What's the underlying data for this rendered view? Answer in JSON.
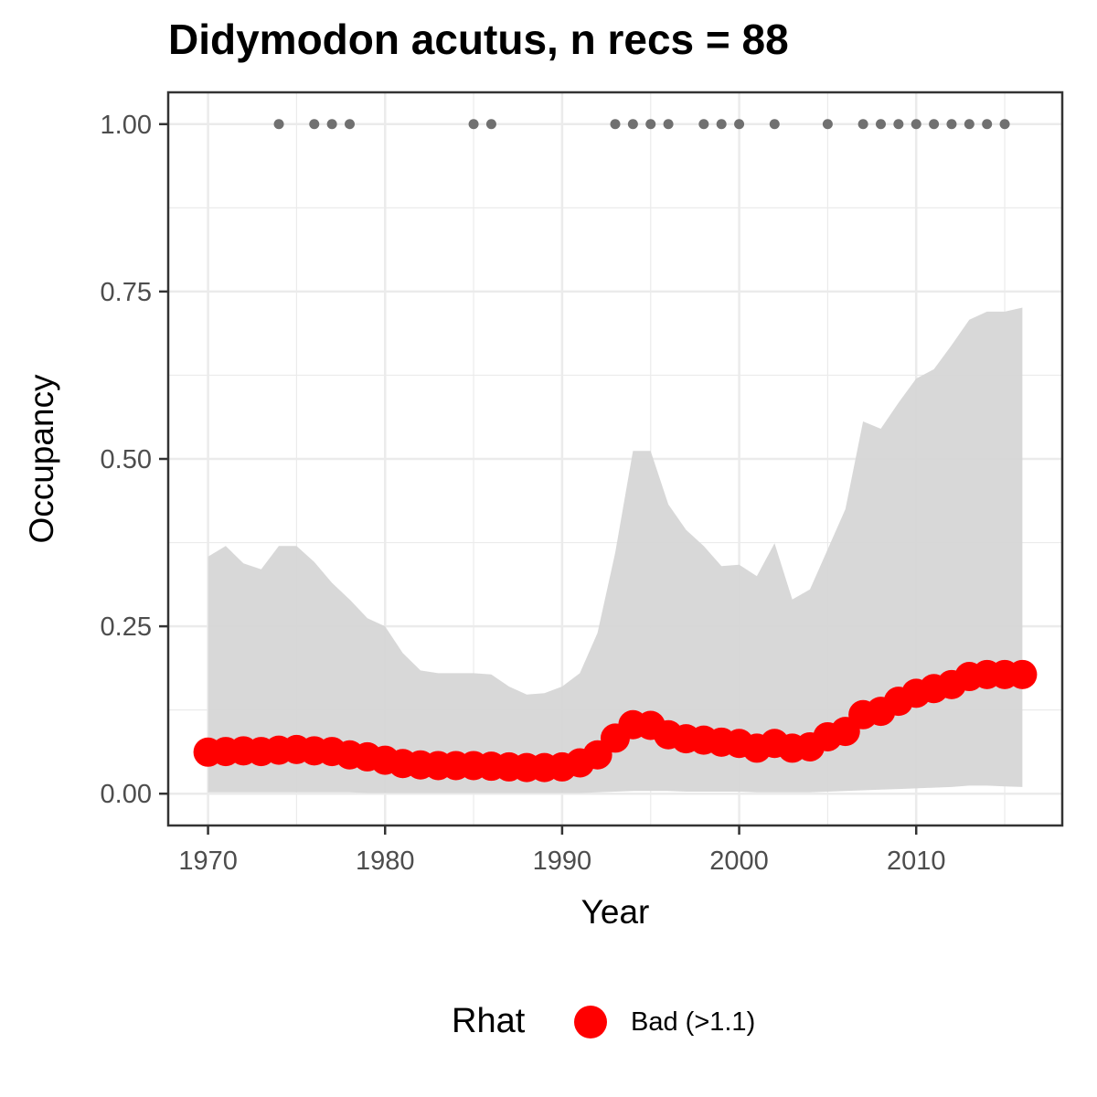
{
  "chart_data": {
    "type": "line",
    "title": "Didymodon acutus, n recs = 88",
    "xlabel": "Year",
    "ylabel": "Occupancy",
    "xlim": [
      1967.75,
      2018.25
    ],
    "ylim": [
      -0.0475,
      1.0475
    ],
    "x_ticks": [
      1970,
      1980,
      1990,
      2000,
      2010
    ],
    "x_tick_labels": [
      "1970",
      "1980",
      "1990",
      "2000",
      "2010"
    ],
    "y_ticks": [
      0.0,
      0.25,
      0.5,
      0.75,
      1.0
    ],
    "y_tick_labels": [
      "0.00",
      "0.25",
      "0.50",
      "0.75",
      "1.00"
    ],
    "grid": true,
    "legend_position": "bottom",
    "legend": {
      "title": "Rhat",
      "entries": [
        {
          "label": "Bad (>1.1)",
          "color": "#ff0000"
        }
      ]
    },
    "colors": {
      "line": "#ff0000",
      "ribbon": "#d6d6d6",
      "records": "#707070",
      "panel_border": "#333333",
      "grid": "#ebebeb"
    },
    "years": [
      1970,
      1971,
      1972,
      1973,
      1974,
      1975,
      1976,
      1977,
      1978,
      1979,
      1980,
      1981,
      1982,
      1983,
      1984,
      1985,
      1986,
      1987,
      1988,
      1989,
      1990,
      1991,
      1992,
      1993,
      1994,
      1995,
      1996,
      1997,
      1998,
      1999,
      2000,
      2001,
      2002,
      2003,
      2004,
      2005,
      2006,
      2007,
      2008,
      2009,
      2010,
      2011,
      2012,
      2013,
      2014,
      2015,
      2016
    ],
    "occupancy": [
      0.062,
      0.063,
      0.064,
      0.063,
      0.065,
      0.066,
      0.064,
      0.063,
      0.058,
      0.055,
      0.05,
      0.045,
      0.043,
      0.042,
      0.042,
      0.042,
      0.041,
      0.04,
      0.039,
      0.039,
      0.04,
      0.046,
      0.058,
      0.083,
      0.103,
      0.102,
      0.088,
      0.082,
      0.08,
      0.077,
      0.075,
      0.068,
      0.075,
      0.068,
      0.07,
      0.085,
      0.093,
      0.118,
      0.123,
      0.138,
      0.15,
      0.157,
      0.163,
      0.175,
      0.178,
      0.178,
      0.178
    ],
    "upper_ci": [
      0.354,
      0.37,
      0.344,
      0.335,
      0.37,
      0.37,
      0.346,
      0.315,
      0.29,
      0.262,
      0.25,
      0.21,
      0.184,
      0.18,
      0.18,
      0.18,
      0.178,
      0.16,
      0.148,
      0.15,
      0.16,
      0.18,
      0.24,
      0.36,
      0.512,
      0.512,
      0.432,
      0.394,
      0.37,
      0.34,
      0.342,
      0.325,
      0.374,
      0.29,
      0.305,
      0.365,
      0.425,
      0.556,
      0.545,
      0.584,
      0.62,
      0.634,
      0.67,
      0.708,
      0.72,
      0.72,
      0.726
    ],
    "lower_ci": [
      0.002,
      0.002,
      0.002,
      0.002,
      0.002,
      0.002,
      0.002,
      0.002,
      0.002,
      0.001,
      0.001,
      0.001,
      0.001,
      0.001,
      0.001,
      0.001,
      0.001,
      0.001,
      0.001,
      0.001,
      0.001,
      0.001,
      0.002,
      0.003,
      0.004,
      0.004,
      0.004,
      0.003,
      0.003,
      0.003,
      0.003,
      0.002,
      0.002,
      0.002,
      0.002,
      0.003,
      0.004,
      0.005,
      0.006,
      0.007,
      0.008,
      0.009,
      0.01,
      0.012,
      0.012,
      0.011,
      0.01
    ],
    "record_years": [
      1974,
      1976,
      1977,
      1978,
      1985,
      1986,
      1993,
      1994,
      1995,
      1996,
      1998,
      1999,
      2000,
      2002,
      2005,
      2007,
      2008,
      2009,
      2010,
      2011,
      2012,
      2013,
      2014,
      2015
    ],
    "record_value": 1.0
  }
}
